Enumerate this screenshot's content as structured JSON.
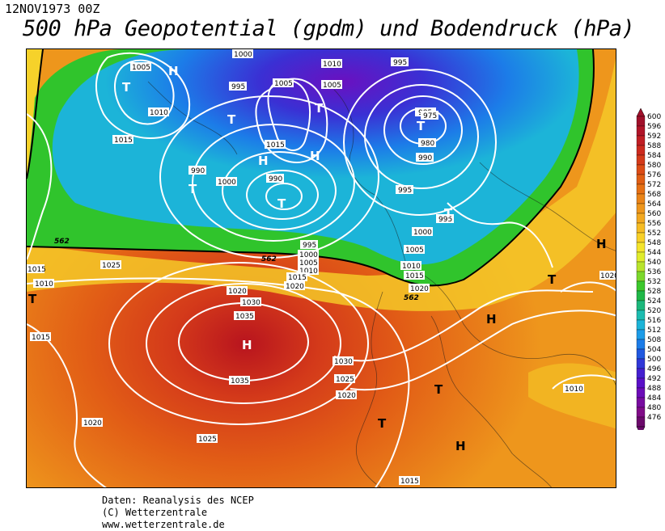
{
  "header": {
    "datetime": "12NOV1973 00Z",
    "title": "500 hPa Geopotential (gpdm) und Bodendruck (hPa)"
  },
  "map": {
    "contour_562_label": "562",
    "pressure_centers": [
      {
        "type": "H",
        "label": "H",
        "value": null
      },
      {
        "type": "T",
        "label": "T",
        "value": null
      }
    ],
    "isobar_values": [
      "975",
      "980",
      "985",
      "990",
      "995",
      "1000",
      "1005",
      "1010",
      "1015",
      "1020",
      "1025",
      "1030",
      "1035"
    ]
  },
  "legend": {
    "levels": [
      "600",
      "596",
      "592",
      "588",
      "584",
      "580",
      "576",
      "572",
      "568",
      "564",
      "560",
      "556",
      "552",
      "548",
      "544",
      "540",
      "536",
      "532",
      "528",
      "524",
      "520",
      "516",
      "512",
      "508",
      "504",
      "500",
      "496",
      "492",
      "488",
      "484",
      "480",
      "476"
    ],
    "colors": [
      "#a0102a",
      "#b01428",
      "#c01e24",
      "#cc2a1e",
      "#d43a1a",
      "#dc4c16",
      "#e05e14",
      "#e67014",
      "#ea8418",
      "#ee961c",
      "#f2a820",
      "#f6bc24",
      "#f8d028",
      "#f4e42c",
      "#e0ec2c",
      "#b8e42c",
      "#7cd82c",
      "#3cc82c",
      "#20b848",
      "#1cb87c",
      "#1cbcb0",
      "#1cb4d8",
      "#1c9ce8",
      "#1c7ce8",
      "#2058e0",
      "#3038d8",
      "#4420d0",
      "#5a10c8",
      "#6c0cb8",
      "#780ca0",
      "#800c88",
      "#6c0a6c"
    ]
  },
  "footer": {
    "line1": "Daten: Reanalysis des NCEP",
    "line2": "(C) Wetterzentrale",
    "line3": "www.wetterzentrale.de"
  }
}
